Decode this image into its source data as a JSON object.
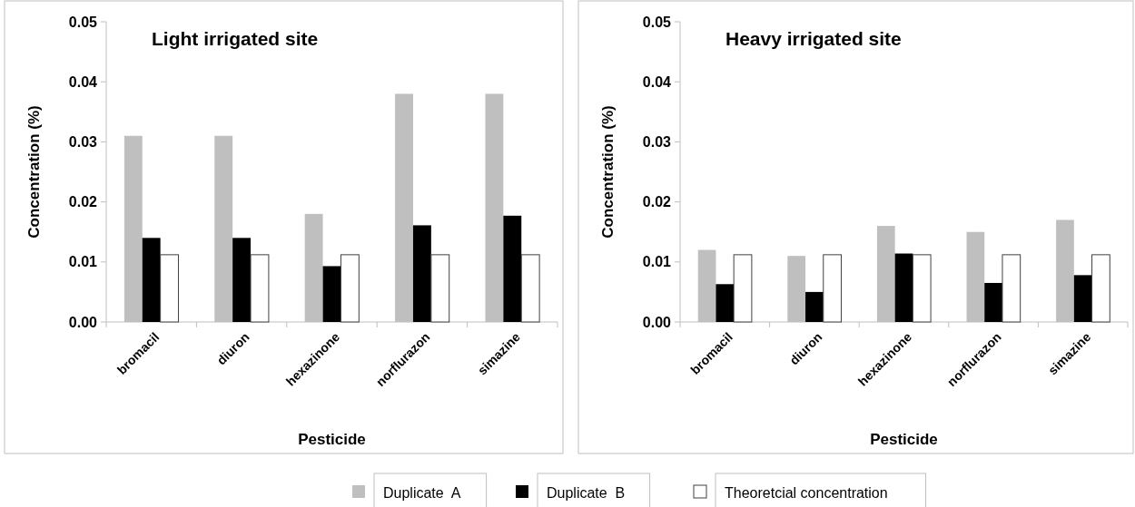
{
  "chart_data": [
    {
      "type": "bar",
      "title": "Light irrigated site",
      "xlabel": "Pesticide",
      "ylabel": "Concentration (%)",
      "categories": [
        "bromacil",
        "diuron",
        "hexazinone",
        "norflurazon",
        "simazine"
      ],
      "series": [
        {
          "name": "Duplicate  A",
          "color": "#bfbfbf",
          "values": [
            0.031,
            0.031,
            0.018,
            0.038,
            0.038
          ]
        },
        {
          "name": "Duplicate  B",
          "color": "#000000",
          "values": [
            0.014,
            0.014,
            0.0093,
            0.0161,
            0.0177
          ]
        },
        {
          "name": "Theoretcial concentration",
          "color": "#ffffff",
          "values": [
            0.0112,
            0.0112,
            0.0112,
            0.0112,
            0.0112
          ]
        }
      ],
      "ylim": [
        0,
        0.05
      ],
      "yticks": [
        {
          "value": 0,
          "label": "0.00"
        },
        {
          "value": 0.01,
          "label": "0.01"
        },
        {
          "value": 0.02,
          "label": "0.02"
        },
        {
          "value": 0.03,
          "label": "0.03"
        },
        {
          "value": 0.04,
          "label": "0.04"
        },
        {
          "value": 0.05,
          "label": "0.05"
        }
      ],
      "legend": "bottom",
      "grid": false
    },
    {
      "type": "bar",
      "title": "Heavy irrigated site",
      "xlabel": "Pesticide",
      "ylabel": "Concentration (%)",
      "categories": [
        "bromacil",
        "diuron",
        "hexazinone",
        "norflurazon",
        "simazine"
      ],
      "series": [
        {
          "color": "#bfbfbf",
          "values": [
            0.012,
            0.011,
            0.016,
            0.015,
            0.017
          ]
        },
        {
          "color": "#000000",
          "values": [
            0.0063,
            0.005,
            0.0114,
            0.0065,
            0.0078
          ]
        },
        {
          "color": "#ffffff",
          "values": [
            0.0112,
            0.0112,
            0.0112,
            0.0112,
            0.0112
          ]
        }
      ],
      "ylim": [
        0,
        0.05
      ],
      "yticks": [
        {
          "value": 0,
          "label": "0.00"
        },
        {
          "value": 0.01,
          "label": "0.01"
        },
        {
          "value": 0.02,
          "label": "0.02"
        },
        {
          "value": 0.03,
          "label": "0.03"
        },
        {
          "value": 0.04,
          "label": "0.04"
        },
        {
          "value": 0.05,
          "label": "0.05"
        }
      ],
      "grid": false
    }
  ]
}
